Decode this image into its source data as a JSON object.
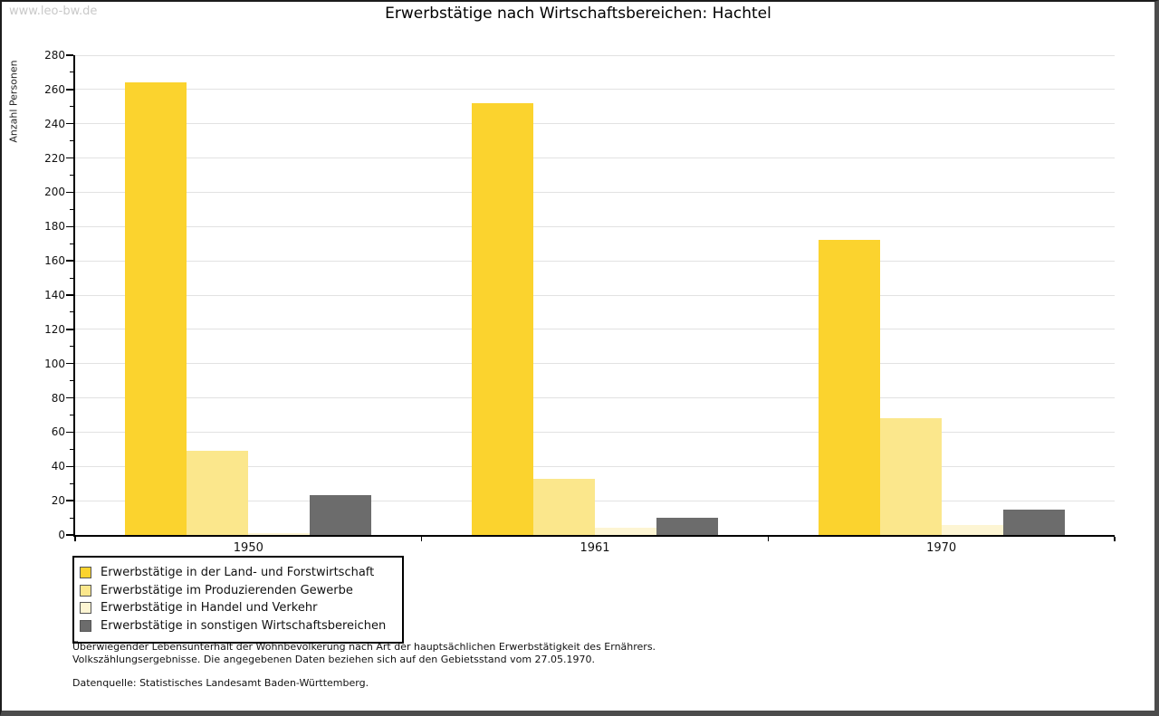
{
  "watermark": "www.leo-bw.de",
  "title": "Erwerbstätige nach Wirtschaftsbereichen: Hachtel",
  "chart_data": {
    "type": "bar",
    "title": "Erwerbstätige nach Wirtschaftsbereichen: Hachtel",
    "xlabel": "",
    "ylabel": "Anzahl Personen",
    "categories": [
      "1950",
      "1961",
      "1970"
    ],
    "series": [
      {
        "name": "Erwerbstätige in der Land- und Forstwirtschaft",
        "color": "#FBD32E",
        "values": [
          264,
          252,
          172
        ]
      },
      {
        "name": "Erwerbstätige im Produzierenden Gewerbe",
        "color": "#FBE78C",
        "values": [
          49,
          33,
          68
        ]
      },
      {
        "name": "Erwerbstätige in Handel und Verkehr",
        "color": "#FDF5D3",
        "values": [
          1,
          4,
          6
        ]
      },
      {
        "name": "Erwerbstätige in sonstigen Wirtschaftsbereichen",
        "color": "#6C6C6C",
        "values": [
          23,
          10,
          15
        ]
      }
    ],
    "ylim": [
      0,
      280
    ],
    "ytick_step": 20,
    "yminor_step": 10,
    "grid": true,
    "gridline_color": "#E2E2E2",
    "legend_position": "bottom-left"
  },
  "footer": {
    "line1": "Überwiegender Lebensunterhalt der Wohnbevölkerung nach Art der hauptsächlichen Erwerbstätigkeit des Ernährers.",
    "line2": "Volkszählungsergebnisse. Die angegebenen Daten beziehen sich auf den Gebietsstand vom 27.05.1970.",
    "source": "Datenquelle: Statistisches Landesamt Baden-Württemberg."
  }
}
